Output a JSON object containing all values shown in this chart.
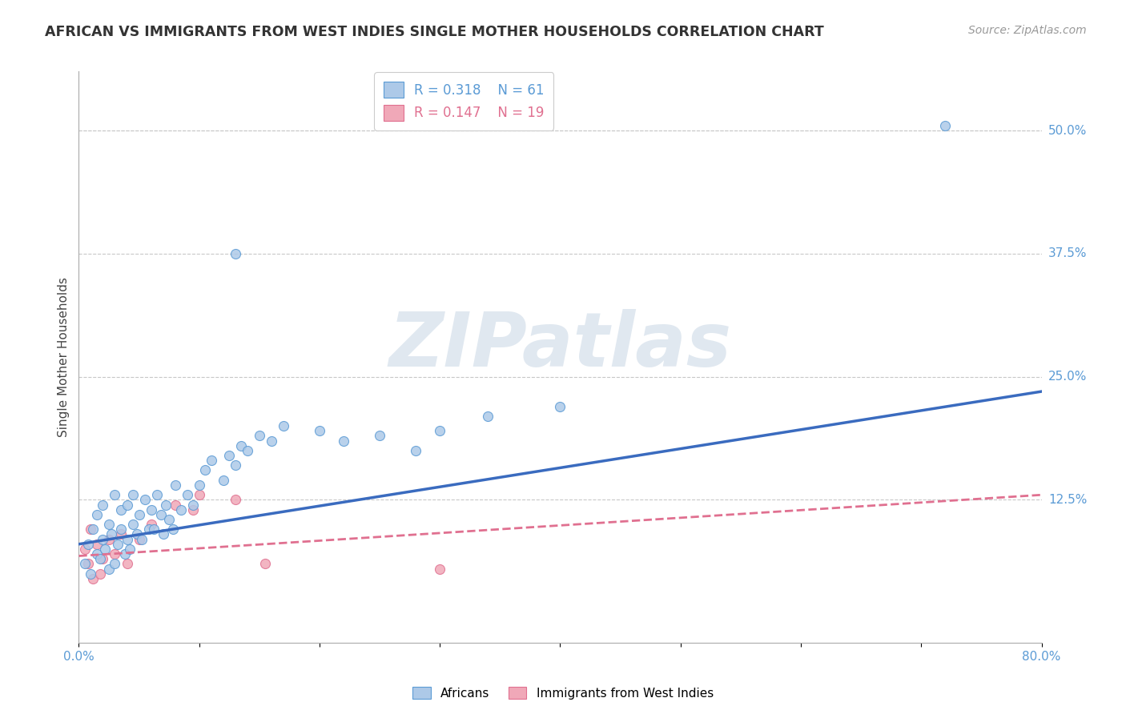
{
  "title": "AFRICAN VS IMMIGRANTS FROM WEST INDIES SINGLE MOTHER HOUSEHOLDS CORRELATION CHART",
  "source": "Source: ZipAtlas.com",
  "ylabel": "Single Mother Households",
  "xlim": [
    0.0,
    0.8
  ],
  "ylim": [
    -0.02,
    0.56
  ],
  "ytick_labels_right": [
    "50.0%",
    "37.5%",
    "25.0%",
    "12.5%"
  ],
  "ytick_values_right": [
    0.5,
    0.375,
    0.25,
    0.125
  ],
  "african_fill": "#adc9e8",
  "african_edge": "#5b9bd5",
  "wi_fill": "#f0a8b8",
  "wi_edge": "#e07090",
  "african_line_color": "#3a6bbf",
  "wi_line_color": "#e07090",
  "r_african": 0.318,
  "n_african": 61,
  "r_west_indies": 0.147,
  "n_west_indies": 19,
  "background_color": "#ffffff",
  "grid_color": "#c8c8c8",
  "watermark": "ZIPatlas",
  "african_x": [
    0.005,
    0.008,
    0.01,
    0.012,
    0.015,
    0.015,
    0.018,
    0.02,
    0.02,
    0.022,
    0.025,
    0.025,
    0.027,
    0.03,
    0.03,
    0.032,
    0.035,
    0.035,
    0.038,
    0.04,
    0.04,
    0.042,
    0.045,
    0.045,
    0.048,
    0.05,
    0.052,
    0.055,
    0.058,
    0.06,
    0.062,
    0.065,
    0.068,
    0.07,
    0.072,
    0.075,
    0.078,
    0.08,
    0.085,
    0.09,
    0.095,
    0.1,
    0.105,
    0.11,
    0.12,
    0.125,
    0.13,
    0.135,
    0.14,
    0.15,
    0.16,
    0.17,
    0.2,
    0.22,
    0.25,
    0.28,
    0.3,
    0.34,
    0.4,
    0.13,
    0.72
  ],
  "african_y": [
    0.06,
    0.08,
    0.05,
    0.095,
    0.07,
    0.11,
    0.065,
    0.085,
    0.12,
    0.075,
    0.055,
    0.1,
    0.09,
    0.06,
    0.13,
    0.08,
    0.095,
    0.115,
    0.07,
    0.085,
    0.12,
    0.075,
    0.1,
    0.13,
    0.09,
    0.11,
    0.085,
    0.125,
    0.095,
    0.115,
    0.095,
    0.13,
    0.11,
    0.09,
    0.12,
    0.105,
    0.095,
    0.14,
    0.115,
    0.13,
    0.12,
    0.14,
    0.155,
    0.165,
    0.145,
    0.17,
    0.16,
    0.18,
    0.175,
    0.19,
    0.185,
    0.2,
    0.195,
    0.185,
    0.19,
    0.175,
    0.195,
    0.21,
    0.22,
    0.375,
    0.505
  ],
  "wi_x": [
    0.005,
    0.008,
    0.01,
    0.012,
    0.015,
    0.018,
    0.02,
    0.025,
    0.03,
    0.035,
    0.04,
    0.05,
    0.06,
    0.08,
    0.095,
    0.1,
    0.13,
    0.155,
    0.3
  ],
  "wi_y": [
    0.075,
    0.06,
    0.095,
    0.045,
    0.08,
    0.05,
    0.065,
    0.085,
    0.07,
    0.09,
    0.06,
    0.085,
    0.1,
    0.12,
    0.115,
    0.13,
    0.125,
    0.06,
    0.055
  ],
  "african_line_x0": 0.0,
  "african_line_y0": 0.08,
  "african_line_x1": 0.8,
  "african_line_y1": 0.235,
  "wi_line_x0": 0.0,
  "wi_line_y0": 0.068,
  "wi_line_x1": 0.8,
  "wi_line_y1": 0.13
}
